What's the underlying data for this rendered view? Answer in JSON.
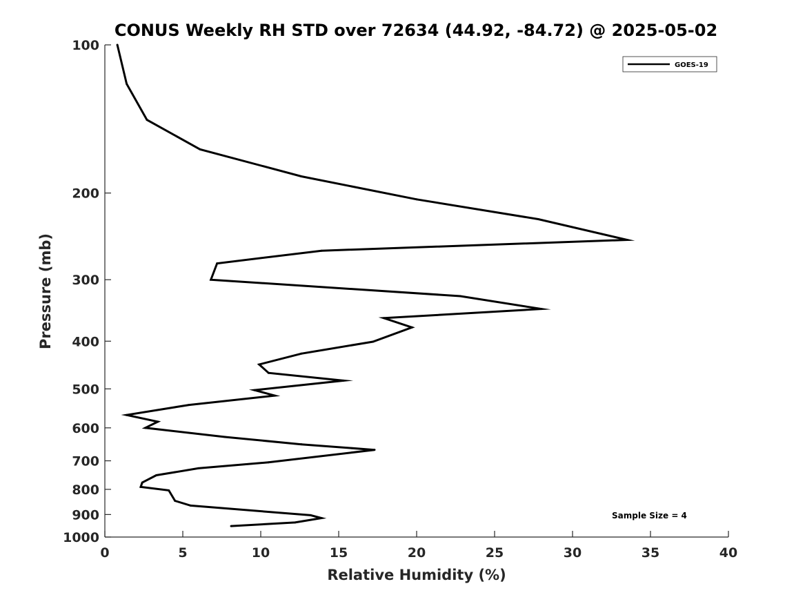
{
  "chart_data": {
    "type": "line",
    "title": "CONUS Weekly RH STD over 72634 (44.92, -84.72) @ 2025-05-02",
    "xlabel": "Relative Humidity (%)",
    "ylabel": "Pressure (mb)",
    "xlim": [
      0,
      40
    ],
    "ylim": [
      1000,
      100
    ],
    "y_scale": "log",
    "x_ticks": [
      0,
      5,
      10,
      15,
      20,
      25,
      30,
      35,
      40
    ],
    "x_tick_labels": [
      "0",
      "5",
      "10",
      "15",
      "20",
      "25",
      "30",
      "35",
      "40"
    ],
    "y_ticks": [
      100,
      200,
      300,
      400,
      500,
      600,
      700,
      800,
      900,
      1000
    ],
    "y_tick_labels": [
      "100",
      "200",
      "300",
      "400",
      "500",
      "600",
      "700",
      "800",
      "900",
      "1000"
    ],
    "grid": false,
    "legend_position": "top-right",
    "annotation": "Sample Size = 4",
    "series": [
      {
        "name": "GOES-19",
        "color": "#000000",
        "points": [
          [
            0.8,
            100
          ],
          [
            1.4,
            120
          ],
          [
            2.7,
            142
          ],
          [
            6.1,
            163
          ],
          [
            12.6,
            185
          ],
          [
            20.0,
            206
          ],
          [
            27.8,
            226
          ],
          [
            33.5,
            249
          ],
          [
            13.9,
            262
          ],
          [
            7.2,
            278
          ],
          [
            6.8,
            300
          ],
          [
            22.8,
            324
          ],
          [
            28.0,
            344
          ],
          [
            17.9,
            359
          ],
          [
            19.7,
            375
          ],
          [
            17.2,
            401
          ],
          [
            12.6,
            424
          ],
          [
            9.9,
            446
          ],
          [
            10.5,
            464
          ],
          [
            15.3,
            481
          ],
          [
            9.6,
            503
          ],
          [
            10.9,
            516
          ],
          [
            5.4,
            539
          ],
          [
            1.4,
            565
          ],
          [
            3.4,
            583
          ],
          [
            2.6,
            600
          ],
          [
            7.7,
            626
          ],
          [
            12.6,
            648
          ],
          [
            17.3,
            665
          ],
          [
            10.5,
            705
          ],
          [
            6.0,
            725
          ],
          [
            3.3,
            749
          ],
          [
            2.4,
            775
          ],
          [
            2.3,
            791
          ],
          [
            4.1,
            804
          ],
          [
            4.5,
            844
          ],
          [
            5.5,
            863
          ],
          [
            13.2,
            903
          ],
          [
            13.9,
            915
          ],
          [
            12.2,
            934
          ],
          [
            8.1,
            950
          ]
        ]
      }
    ]
  }
}
